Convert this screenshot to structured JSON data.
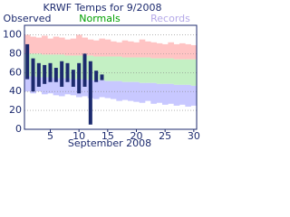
{
  "chart_data": {
    "type": "range-bar",
    "title": "KRWF Temps for 9/2008",
    "xlabel": "September 2008",
    "x": [
      1,
      2,
      3,
      4,
      5,
      6,
      7,
      8,
      9,
      10,
      11,
      12,
      13,
      14,
      15,
      16,
      17,
      18,
      19,
      20,
      21,
      22,
      23,
      24,
      25,
      26,
      27,
      28,
      29,
      30
    ],
    "xlim": [
      0.5,
      30.5
    ],
    "xticks": [
      5,
      10,
      15,
      20,
      25,
      30
    ],
    "ylim": [
      0,
      110
    ],
    "yticks": [
      0,
      20,
      40,
      60,
      80,
      100
    ],
    "grid": true,
    "series": [
      {
        "name": "Observed",
        "color": "#1c2a6e",
        "high": [
          90,
          75,
          70,
          68,
          70,
          65,
          72,
          70,
          63,
          70,
          80,
          72,
          62,
          58,
          null,
          null,
          null,
          null,
          null,
          null,
          null,
          null,
          null,
          null,
          null,
          null,
          null,
          null,
          null,
          null
        ],
        "low": [
          53,
          40,
          45,
          48,
          50,
          50,
          45,
          50,
          45,
          38,
          45,
          5,
          50,
          52,
          null,
          null,
          null,
          null,
          null,
          null,
          null,
          null,
          null,
          null,
          null,
          null,
          null,
          null,
          null,
          null
        ]
      },
      {
        "name": "Normals",
        "color": "#00a000",
        "high": [
          80,
          80,
          80,
          79,
          79,
          79,
          79,
          78,
          78,
          78,
          78,
          78,
          77,
          77,
          77,
          77,
          77,
          76,
          76,
          76,
          76,
          76,
          75,
          75,
          75,
          75,
          74,
          74,
          74,
          74
        ],
        "low": [
          56,
          56,
          55,
          55,
          55,
          54,
          54,
          54,
          53,
          53,
          53,
          52,
          52,
          52,
          51,
          51,
          51,
          50,
          50,
          50,
          49,
          49,
          49,
          48,
          48,
          48,
          47,
          47,
          47,
          46
        ]
      },
      {
        "name": "Records",
        "color": "#b4a8e8",
        "high": [
          100,
          98,
          97,
          99,
          96,
          98,
          97,
          95,
          96,
          100,
          97,
          95,
          94,
          96,
          95,
          93,
          92,
          94,
          93,
          92,
          95,
          93,
          92,
          91,
          90,
          92,
          90,
          91,
          90,
          89
        ],
        "low": [
          40,
          38,
          40,
          37,
          38,
          36,
          35,
          37,
          36,
          34,
          35,
          33,
          32,
          34,
          33,
          32,
          30,
          31,
          30,
          29,
          28,
          30,
          27,
          28,
          26,
          27,
          25,
          26,
          24,
          25
        ]
      }
    ]
  }
}
